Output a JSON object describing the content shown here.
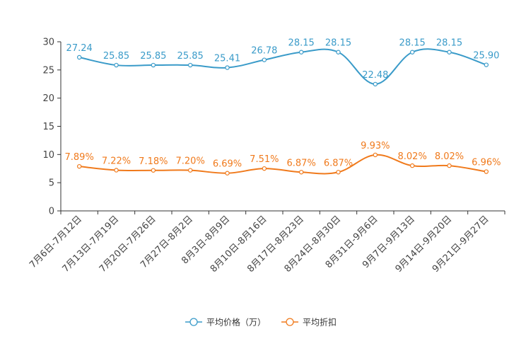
{
  "chart_data": {
    "type": "line",
    "title": "",
    "xlabel": "",
    "ylabel": "",
    "ylim": [
      0,
      30
    ],
    "yticks": [
      0,
      5,
      10,
      15,
      20,
      25,
      30
    ],
    "grid": false,
    "legend_position": "bottom",
    "categories": [
      "7月6日-7月12日",
      "7月13日-7月19日",
      "7月20日-7月26日",
      "7月27日-8月2日",
      "8月3日-8月9日",
      "8月10日-8月16日",
      "8月17日-8月23日",
      "8月24日-8月30日",
      "8月31日-9月6日",
      "9月7日-9月13日",
      "9月14日-9月20日",
      "9月21日-9月27日"
    ],
    "series": [
      {
        "name": "平均价格（万）",
        "color": "#3a9bc9",
        "values": [
          27.24,
          25.85,
          25.85,
          25.85,
          25.41,
          26.78,
          28.15,
          28.15,
          22.48,
          28.15,
          28.15,
          25.9
        ],
        "labels": [
          "27.24",
          "25.85",
          "25.85",
          "25.85",
          "25.41",
          "26.78",
          "28.15",
          "28.15",
          "22.48",
          "28.15",
          "28.15",
          "25.90"
        ]
      },
      {
        "name": "平均折扣",
        "color": "#f07a1c",
        "values": [
          7.89,
          7.22,
          7.18,
          7.2,
          6.69,
          7.51,
          6.87,
          6.87,
          9.93,
          8.02,
          8.02,
          6.96
        ],
        "labels": [
          "7.89%",
          "7.22%",
          "7.18%",
          "7.20%",
          "6.69%",
          "7.51%",
          "6.87%",
          "6.87%",
          "9.93%",
          "8.02%",
          "8.02%",
          "6.96%"
        ]
      }
    ]
  }
}
